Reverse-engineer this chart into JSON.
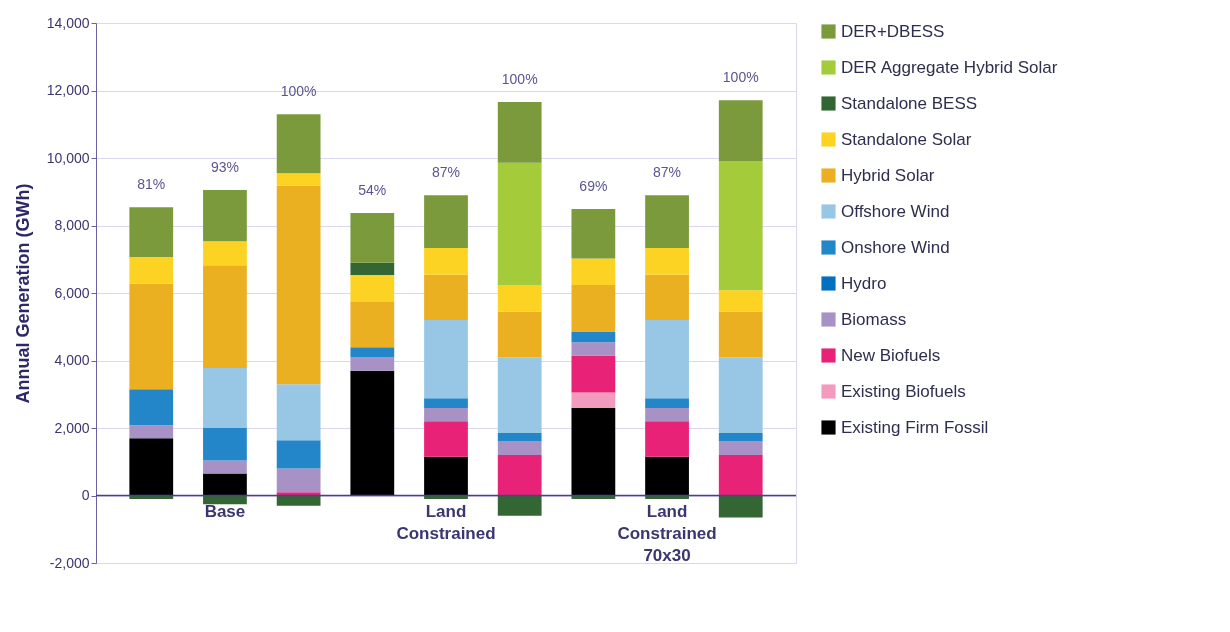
{
  "chart_data": {
    "type": "bar",
    "stacked": true,
    "ylabel": "Annual Generation (GWh)",
    "categories": [
      null,
      "Base",
      null,
      null,
      "Land Constrained",
      null,
      null,
      "Land Constrained 70x30",
      null
    ],
    "series": [
      {
        "name": "Existing Firm Fossil",
        "color": "#000000",
        "values": [
          1700,
          650,
          null,
          3700,
          1150,
          null,
          2600,
          1150,
          null
        ]
      },
      {
        "name": "Existing Biofuels",
        "color": "#f39abf",
        "values": [
          null,
          null,
          null,
          null,
          null,
          null,
          450,
          null,
          null
        ]
      },
      {
        "name": "New Biofuels",
        "color": "#e82277",
        "values": [
          null,
          null,
          100,
          null,
          1050,
          1200,
          1100,
          1050,
          1200
        ]
      },
      {
        "name": "Biomass",
        "color": "#a891c5",
        "values": [
          380,
          390,
          700,
          390,
          390,
          400,
          390,
          390,
          400
        ]
      },
      {
        "name": "Hydro",
        "color": "#0070c0",
        "values": [
          null,
          null,
          null,
          null,
          null,
          null,
          null,
          null,
          null
        ]
      },
      {
        "name": "Onshore Wind",
        "color": "#2386c8",
        "values": [
          1070,
          960,
          840,
          300,
          290,
          250,
          320,
          290,
          250
        ]
      },
      {
        "name": "Offshore Wind",
        "color": "#98c7e6",
        "values": [
          null,
          1780,
          1660,
          null,
          2320,
          2250,
          null,
          2320,
          2250
        ]
      },
      {
        "name": "Hybrid Solar",
        "color": "#ebb021",
        "values": [
          3130,
          3040,
          5880,
          1340,
          1340,
          1350,
          1380,
          1340,
          1350
        ]
      },
      {
        "name": "Standalone Solar",
        "color": "#fdd323",
        "values": [
          790,
          710,
          370,
          800,
          790,
          770,
          780,
          790,
          630
        ]
      },
      {
        "name": "Standalone BESS",
        "color": "#336633",
        "values": [
          -100,
          -260,
          -300,
          370,
          -100,
          -600,
          -100,
          -100,
          -650
        ]
      },
      {
        "name": "DER Aggregate Hybrid Solar",
        "color": "#a4cc3a",
        "values": [
          null,
          null,
          null,
          null,
          null,
          3640,
          null,
          null,
          3830
        ]
      },
      {
        "name": "DER+DBESS",
        "color": "#7a9a3c",
        "values": [
          1470,
          1520,
          1750,
          1470,
          1570,
          1800,
          1470,
          1570,
          1800
        ]
      }
    ],
    "annotations": [
      "81%",
      "93%",
      "100%",
      "54%",
      "87%",
      "100%",
      "69%",
      "87%",
      "100%"
    ],
    "ylim": [
      -2000,
      14000
    ],
    "yticks": [
      {
        "value": -2000,
        "label": "-2,000"
      },
      0,
      {
        "value": 2000,
        "label": "2,000"
      },
      {
        "value": 4000,
        "label": "4,000"
      },
      {
        "value": 6000,
        "label": "6,000"
      },
      {
        "value": 8000,
        "label": "8,000"
      },
      {
        "value": 10000,
        "label": "10,000"
      },
      {
        "value": 12000,
        "label": "12,000"
      },
      {
        "value": 14000,
        "label": "14,000"
      }
    ],
    "ref_lines": [
      {
        "axis": "y",
        "value": 0,
        "color": "#4b3f8a"
      }
    ],
    "grid": "y",
    "legend": "right"
  }
}
